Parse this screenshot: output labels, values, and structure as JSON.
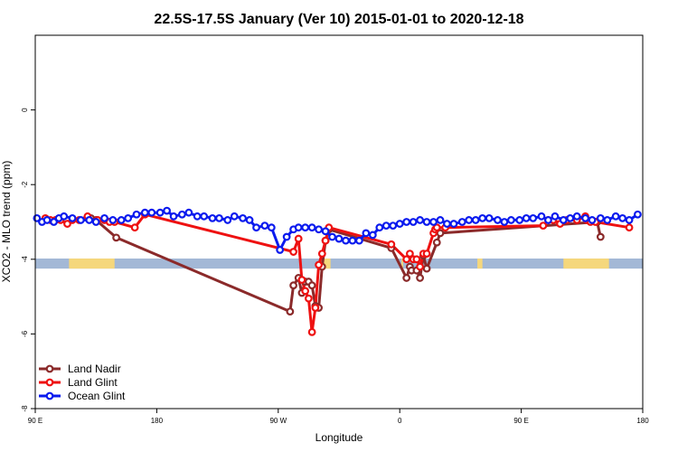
{
  "chart_data": {
    "type": "line",
    "title": "22.5S-17.5S January (Ver 10)   2015-01-01 to 2020-12-18",
    "xlabel": "Longitude",
    "ylabel": "XCO2 - MLO trend (ppm)",
    "xlim": [
      90,
      450
    ],
    "ylim": [
      -8,
      2
    ],
    "x_ticks": [
      {
        "value": 90,
        "label": "90 E"
      },
      {
        "value": 162,
        "label": "180"
      },
      {
        "value": 234,
        "label": "90 W"
      },
      {
        "value": 306,
        "label": "0"
      },
      {
        "value": 378,
        "label": "90 E"
      },
      {
        "value": 450,
        "label": "180"
      }
    ],
    "y_ticks": [
      {
        "value": 0,
        "label": "0"
      },
      {
        "value": -2,
        "label": "-2"
      },
      {
        "value": -4,
        "label": "-4"
      },
      {
        "value": -6,
        "label": "-6"
      },
      {
        "value": -8,
        "label": "-8"
      }
    ],
    "surface_band": {
      "y_top": -3.98,
      "y_bottom": -4.25,
      "ocean_color": "#a3b8d6",
      "land_color": "#f5d77c",
      "land_segments": [
        [
          110,
          137
        ],
        [
          259,
          265
        ],
        [
          307,
          308
        ],
        [
          352,
          355
        ],
        [
          403,
          430
        ]
      ]
    },
    "series": [
      {
        "name": "Land Nadir",
        "color": "#8b2a2a",
        "x": [
          123,
          126,
          138,
          241,
          243,
          246,
          248,
          250,
          252,
          254,
          256,
          258,
          260,
          262,
          264,
          301,
          310,
          312,
          313,
          316,
          318,
          320,
          322,
          328,
          330,
          423,
          425
        ],
        "y": [
          -2.9,
          -2.95,
          -3.42,
          -5.4,
          -4.7,
          -4.5,
          -4.9,
          -4.6,
          -4.6,
          -4.7,
          -5.25,
          -5.3,
          -4.2,
          -3.5,
          -3.2,
          -3.7,
          -4.5,
          -4.2,
          -4.3,
          -4.3,
          -4.5,
          -3.9,
          -4.25,
          -3.55,
          -3.3,
          -3.0,
          -3.4
        ]
      },
      {
        "name": "Land Glint",
        "color": "#ee1111",
        "x": [
          96,
          99,
          102,
          105,
          109,
          112,
          116,
          121,
          127,
          131,
          134,
          137,
          149,
          155,
          243,
          246,
          248,
          250,
          252,
          254,
          256,
          258,
          260,
          262,
          264,
          301,
          310,
          312,
          314,
          316,
          318,
          320,
          322,
          326,
          327,
          328,
          333,
          391,
          394,
          397,
          401,
          405,
          411,
          416,
          417,
          419,
          422,
          442
        ],
        "y": [
          -2.9,
          -2.95,
          -2.95,
          -2.95,
          -3.05,
          -2.95,
          -2.95,
          -2.85,
          -2.95,
          -2.95,
          -3.0,
          -3.0,
          -3.15,
          -2.8,
          -3.8,
          -3.45,
          -4.55,
          -4.85,
          -5.05,
          -5.95,
          -5.3,
          -4.15,
          -3.85,
          -3.5,
          -3.15,
          -3.6,
          -4.0,
          -3.85,
          -4.0,
          -4.0,
          -4.2,
          -3.85,
          -3.85,
          -3.3,
          -3.2,
          -3.15,
          -3.15,
          -3.1,
          -2.95,
          -2.95,
          -3.05,
          -2.95,
          -2.95,
          -2.85,
          -2.95,
          -3.0,
          -3.0,
          -3.15
        ]
      },
      {
        "name": "Ocean Glint",
        "color": "#0a1aee",
        "x": [
          91,
          94,
          97,
          101,
          104,
          107,
          112,
          117,
          122,
          126,
          131,
          136,
          141,
          145,
          150,
          155,
          159,
          164,
          168,
          172,
          177,
          181,
          186,
          190,
          195,
          199,
          204,
          208,
          213,
          217,
          221,
          226,
          230,
          235,
          239,
          243,
          246,
          250,
          254,
          258,
          262,
          266,
          270,
          274,
          278,
          282,
          286,
          290,
          294,
          298,
          302,
          306,
          310,
          314,
          318,
          322,
          326,
          330,
          334,
          338,
          343,
          347,
          351,
          355,
          359,
          364,
          368,
          372,
          377,
          381,
          385,
          390,
          394,
          398,
          403,
          407,
          411,
          416,
          420,
          425,
          429,
          434,
          438,
          442,
          447
        ],
        "y": [
          -2.9,
          -3.0,
          -2.95,
          -3.0,
          -2.9,
          -2.85,
          -2.9,
          -2.95,
          -2.95,
          -3.0,
          -2.9,
          -2.95,
          -2.95,
          -2.9,
          -2.8,
          -2.75,
          -2.75,
          -2.75,
          -2.7,
          -2.85,
          -2.8,
          -2.75,
          -2.85,
          -2.85,
          -2.9,
          -2.9,
          -2.95,
          -2.85,
          -2.9,
          -2.95,
          -3.15,
          -3.1,
          -3.15,
          -3.75,
          -3.4,
          -3.2,
          -3.15,
          -3.15,
          -3.15,
          -3.2,
          -3.25,
          -3.4,
          -3.45,
          -3.5,
          -3.5,
          -3.5,
          -3.3,
          -3.35,
          -3.15,
          -3.1,
          -3.1,
          -3.05,
          -3.0,
          -3.0,
          -2.95,
          -3.0,
          -3.0,
          -2.95,
          -3.05,
          -3.05,
          -3.0,
          -2.95,
          -2.95,
          -2.9,
          -2.9,
          -2.95,
          -3.0,
          -2.95,
          -2.95,
          -2.9,
          -2.9,
          -2.85,
          -2.95,
          -2.85,
          -2.95,
          -2.9,
          -2.85,
          -2.9,
          -2.95,
          -2.9,
          -2.95,
          -2.85,
          -2.9,
          -2.95,
          -2.8
        ]
      }
    ],
    "legend": {
      "position": "bottom-left"
    }
  }
}
